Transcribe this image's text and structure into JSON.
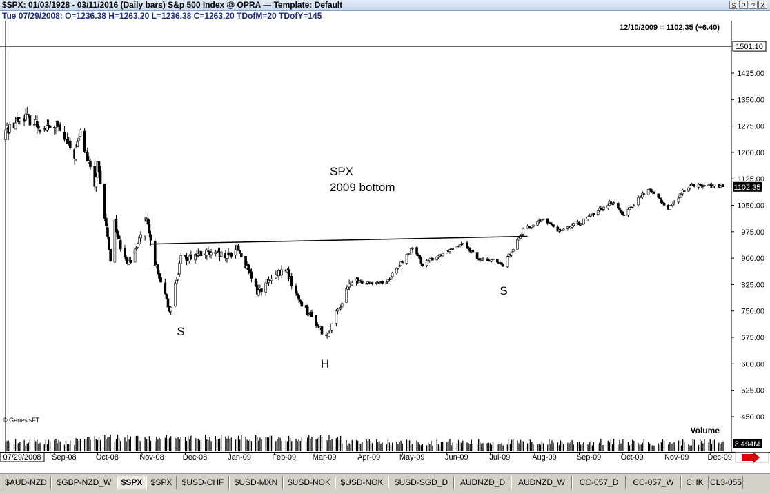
{
  "window": {
    "title": "$SPX:  01/03/1928 - 03/11/2016  (Daily bars)   S&p 500 Index @ OPRA  —  Template: Default",
    "buttons": [
      "S",
      "P",
      "?",
      "X"
    ]
  },
  "ohlc_line": "Tue  07/29/2008:  O=1236.38  H=1263.20  L=1236.38  C=1263.20  TDofM=20  TDofY=145",
  "chart_data": {
    "type": "candlestick",
    "annotation_top": "12/10/2009 = 1102.35 (+6.40)",
    "title_lines": [
      "SPX",
      "2009 bottom"
    ],
    "pattern_labels": [
      {
        "text": "S",
        "date": "Nov-08"
      },
      {
        "text": "H",
        "date": "Mar-09"
      },
      {
        "text": "S",
        "date": "Jul-09"
      }
    ],
    "neckline": [
      {
        "date": "2008-11-06",
        "price": 940
      },
      {
        "date": "2009-07-27",
        "price": 962
      }
    ],
    "top_line_price": 1501.1,
    "top_line_label": "1501.10",
    "last_price": 1102.35,
    "last_price_label": "1102.35",
    "yticks": [
      1425.0,
      1350.0,
      1275.0,
      1200.0,
      1125.0,
      1050.0,
      975.0,
      900.0,
      825.0,
      750.0,
      675.0,
      600.0,
      525.0,
      450.0
    ],
    "ytick_labels": [
      "1425.00",
      "1350.00",
      "1275.00",
      "1200.00",
      "1125.00",
      "1050.00",
      "975.00",
      "900.00",
      "825.00",
      "750.00",
      "675.00",
      "600.00",
      "525.00",
      "450.00"
    ],
    "ylim": [
      400,
      1530
    ],
    "x_start_label": "07/29/2008",
    "xtick_labels": [
      "Sep-08",
      "Oct-08",
      "Nov-08",
      "Dec-08",
      "Jan-09",
      "Feb-09",
      "Mar-09",
      "Apr-09",
      "May-09",
      "Jun-09",
      "Jul-09",
      "Aug-09",
      "Sep-09",
      "Oct-09",
      "Nov-09",
      "Dec-09"
    ],
    "watermark": "© GenesisFT",
    "volume_label": "Volume",
    "volume_last_label": "3.494M",
    "path": [
      [
        "2008-07-29",
        1263
      ],
      [
        "2008-08-11",
        1305
      ],
      [
        "2008-08-25",
        1266
      ],
      [
        "2008-09-02",
        1277
      ],
      [
        "2008-09-15",
        1192
      ],
      [
        "2008-09-19",
        1255
      ],
      [
        "2008-09-29",
        1106
      ],
      [
        "2008-10-01",
        1161
      ],
      [
        "2008-10-10",
        899
      ],
      [
        "2008-10-13",
        1003
      ],
      [
        "2008-10-16",
        946
      ],
      [
        "2008-10-24",
        876
      ],
      [
        "2008-10-28",
        940
      ],
      [
        "2008-11-04",
        1005
      ],
      [
        "2008-11-12",
        852
      ],
      [
        "2008-11-20",
        752
      ],
      [
        "2008-11-28",
        896
      ],
      [
        "2008-12-08",
        909
      ],
      [
        "2008-12-16",
        913
      ],
      [
        "2008-12-31",
        903
      ],
      [
        "2009-01-06",
        934
      ],
      [
        "2009-01-20",
        805
      ],
      [
        "2009-02-09",
        869
      ],
      [
        "2009-02-17",
        789
      ],
      [
        "2009-03-09",
        676
      ],
      [
        "2009-03-26",
        832
      ],
      [
        "2009-04-20",
        832
      ],
      [
        "2009-05-08",
        929
      ],
      [
        "2009-05-15",
        882
      ],
      [
        "2009-06-12",
        946
      ],
      [
        "2009-06-23",
        895
      ],
      [
        "2009-07-02",
        896
      ],
      [
        "2009-07-10",
        879
      ],
      [
        "2009-07-24",
        979
      ],
      [
        "2009-08-07",
        1010
      ],
      [
        "2009-08-17",
        980
      ],
      [
        "2009-09-01",
        998
      ],
      [
        "2009-09-23",
        1060
      ],
      [
        "2009-10-02",
        1025
      ],
      [
        "2009-10-19",
        1097
      ],
      [
        "2009-11-02",
        1042
      ],
      [
        "2009-11-17",
        1110
      ],
      [
        "2009-12-10",
        1102.35
      ]
    ]
  },
  "tabs": [
    {
      "label": "$AUD-NZD"
    },
    {
      "label": "$GBP-NZD_W"
    },
    {
      "label": "$SPX",
      "active": true
    },
    {
      "label": "$SPX"
    },
    {
      "label": "$USD-CHF"
    },
    {
      "label": "$USD-MXN"
    },
    {
      "label": "$USD-NOK"
    },
    {
      "label": "$USD-NOK"
    },
    {
      "label": "$USD-SGD_D"
    },
    {
      "label": "AUDNZD_D"
    },
    {
      "label": "AUDNZD_W"
    },
    {
      "label": "CC-057_D"
    },
    {
      "label": "CC-057_W"
    },
    {
      "label": "CHK"
    },
    {
      "label": "CL3-055"
    }
  ],
  "colors": {
    "up_candle": "#ffffff",
    "down_candle": "#000000",
    "line": "#000000",
    "title_text": "#1a2a8a",
    "price_box": "#000000",
    "arrow": "#dd0000"
  }
}
